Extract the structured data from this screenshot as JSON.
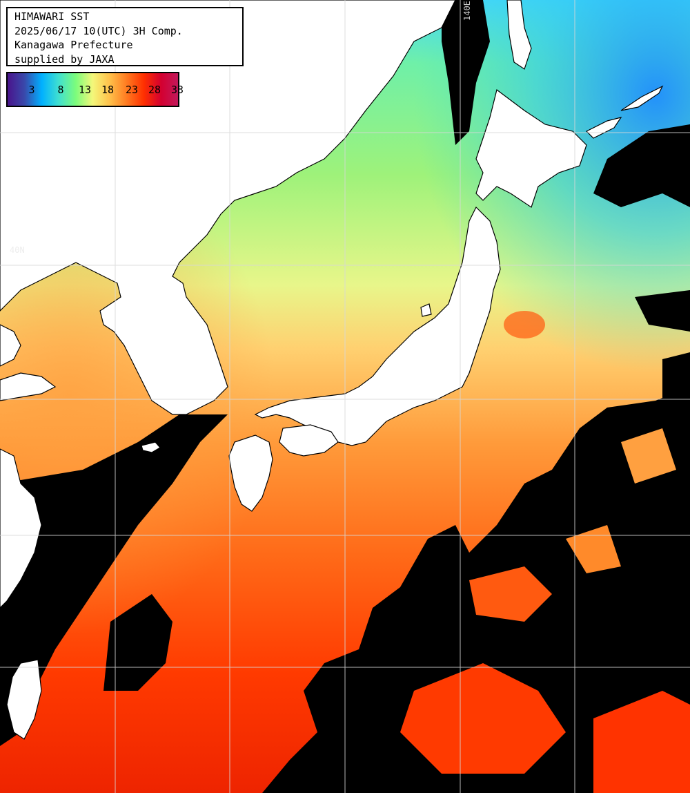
{
  "header": {
    "line1": "HIMAWARI SST",
    "line2": "2025/06/17 10(UTC) 3H Comp.",
    "line3": "Kanagawa Prefecture",
    "line4": "supplied by JAXA"
  },
  "legend": {
    "ticks": [
      "3",
      "8",
      "13",
      "18",
      "23",
      "28",
      "33"
    ],
    "colors": [
      "#4a148c",
      "#3949ab",
      "#00b0ff",
      "#40e0d0",
      "#7cfc7c",
      "#f4f77a",
      "#ffc04a",
      "#ff7a20",
      "#ff3000",
      "#d40030",
      "#c2185b"
    ]
  },
  "grid_labels": {
    "lon": "140E",
    "lat": "40N"
  },
  "colors": {
    "land": "#ffffff",
    "no_data": "#000000",
    "grid": "#d8d8d8"
  }
}
